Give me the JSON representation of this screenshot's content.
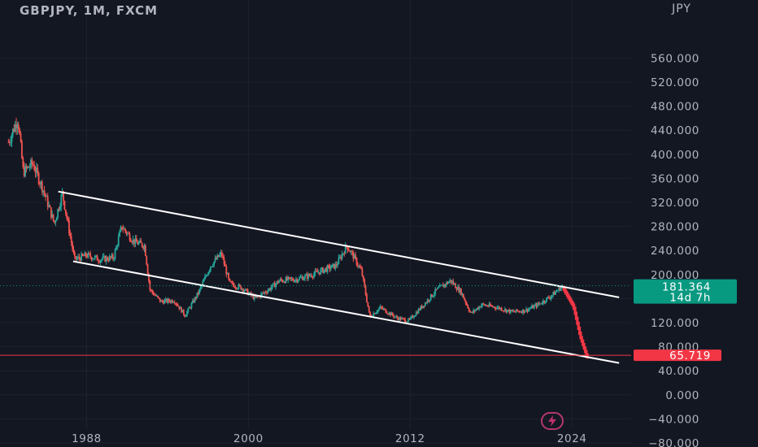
{
  "header": {
    "title": "GBPJPY, 1M, FXCM",
    "currency": "JPY"
  },
  "badges": {
    "last_price": "181.364",
    "countdown": "14d 7h",
    "target_price": "65.719",
    "last_color": "#089981",
    "target_color": "#f23645"
  },
  "icons": [
    "flash-icon"
  ],
  "chart_data": {
    "type": "candlestick",
    "title": "GBPJPY, 1M, FXCM",
    "unit": "JPY",
    "ylim": [
      -100,
      580
    ],
    "y_ticks": [
      560,
      520,
      480,
      440,
      400,
      360,
      320,
      280,
      240,
      200,
      160,
      120,
      80,
      40,
      0,
      -40,
      -80
    ],
    "y_tick_labels": [
      "560.000",
      "520.000",
      "480.000",
      "440.000",
      "400.000",
      "360.000",
      "320.000",
      "280.000",
      "240.000",
      "200.000",
      "160.000",
      "120.000",
      "80.000",
      "40.000",
      "0.000",
      "−40.000",
      "−80.000"
    ],
    "x_ticks": [
      1988,
      2000,
      2012,
      2024
    ],
    "x_range": [
      1982.2,
      2027.5
    ],
    "price_path": [
      [
        1982.2,
        420
      ],
      [
        1982.9,
        460
      ],
      [
        1983.3,
        370
      ],
      [
        1984.0,
        385
      ],
      [
        1984.8,
        340
      ],
      [
        1985.6,
        285
      ],
      [
        1986.2,
        335
      ],
      [
        1987.1,
        225
      ],
      [
        1988.0,
        232
      ],
      [
        1989.0,
        225
      ],
      [
        1990.0,
        228
      ],
      [
        1990.6,
        280
      ],
      [
        1991.5,
        255
      ],
      [
        1992.3,
        248
      ],
      [
        1992.7,
        175
      ],
      [
        1993.5,
        155
      ],
      [
        1994.5,
        157
      ],
      [
        1995.3,
        132
      ],
      [
        1996.3,
        170
      ],
      [
        1997.2,
        215
      ],
      [
        1998.0,
        235
      ],
      [
        1998.6,
        185
      ],
      [
        1999.5,
        178
      ],
      [
        2000.5,
        160
      ],
      [
        2001.5,
        175
      ],
      [
        2002.3,
        190
      ],
      [
        2003.5,
        192
      ],
      [
        2004.5,
        198
      ],
      [
        2005.5,
        207
      ],
      [
        2006.5,
        215
      ],
      [
        2007.3,
        248
      ],
      [
        2007.8,
        230
      ],
      [
        2008.4,
        205
      ],
      [
        2009.0,
        130
      ],
      [
        2009.8,
        145
      ],
      [
        2011.0,
        128
      ],
      [
        2011.9,
        123
      ],
      [
        2013.0,
        150
      ],
      [
        2014.0,
        175
      ],
      [
        2015.0,
        190
      ],
      [
        2015.8,
        170
      ],
      [
        2016.5,
        135
      ],
      [
        2017.3,
        150
      ],
      [
        2018.5,
        145
      ],
      [
        2019.5,
        138
      ],
      [
        2020.5,
        140
      ],
      [
        2021.5,
        150
      ],
      [
        2022.5,
        165
      ],
      [
        2023.3,
        181.364
      ]
    ],
    "projection": [
      [
        2023.4,
        181.364
      ],
      [
        2024.2,
        150
      ],
      [
        2024.7,
        100
      ],
      [
        2025.2,
        65.719
      ]
    ],
    "channel_upper": [
      [
        1985.9,
        338
      ],
      [
        2027.5,
        162
      ]
    ],
    "channel_lower": [
      [
        1987.0,
        222
      ],
      [
        2027.5,
        53
      ]
    ],
    "last_price": 181.364,
    "target_level": 65.719
  }
}
